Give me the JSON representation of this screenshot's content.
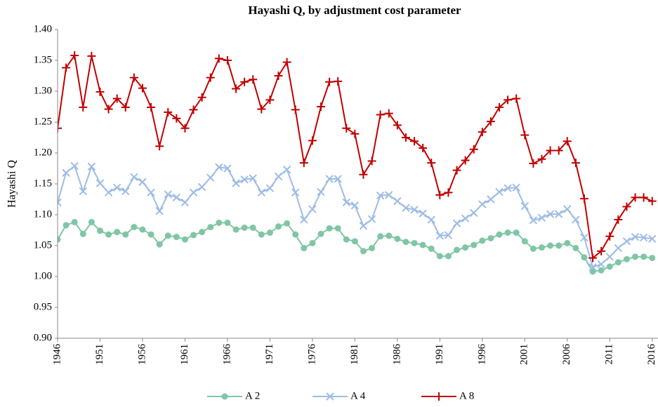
{
  "chart_data": {
    "type": "line",
    "title": "Hayashi Q, by adjustment cost parameter",
    "y_label": "Hayashi Q",
    "x": [
      1946,
      1947,
      1948,
      1949,
      1950,
      1951,
      1952,
      1953,
      1954,
      1955,
      1956,
      1957,
      1958,
      1959,
      1960,
      1961,
      1962,
      1963,
      1964,
      1965,
      1966,
      1967,
      1968,
      1969,
      1970,
      1971,
      1972,
      1973,
      1974,
      1975,
      1976,
      1977,
      1978,
      1979,
      1980,
      1981,
      1982,
      1983,
      1984,
      1985,
      1986,
      1987,
      1988,
      1989,
      1990,
      1991,
      1992,
      1993,
      1994,
      1995,
      1996,
      1997,
      1998,
      1999,
      2000,
      2001,
      2002,
      2003,
      2004,
      2005,
      2006,
      2007,
      2008,
      2009,
      2010,
      2011,
      2012,
      2013,
      2014,
      2015,
      2016
    ],
    "xlim": [
      1946,
      2016.6
    ],
    "xticks": [
      1946,
      1951,
      1956,
      1961,
      1966,
      1971,
      1976,
      1981,
      1986,
      1991,
      1996,
      2001,
      2006,
      2011,
      2016
    ],
    "ylim": [
      0.9,
      1.4
    ],
    "yticks": [
      {
        "value": 0.9,
        "label": "0.90"
      },
      {
        "value": 0.95,
        "label": "0.95"
      },
      {
        "value": 1.0,
        "label": "1.00"
      },
      {
        "value": 1.05,
        "label": "1.05"
      },
      {
        "value": 1.1,
        "label": "1.10"
      },
      {
        "value": 1.15,
        "label": "1.15"
      },
      {
        "value": 1.2,
        "label": "1.20"
      },
      {
        "value": 1.25,
        "label": "1.25"
      },
      {
        "value": 1.3,
        "label": "1.30"
      },
      {
        "value": 1.35,
        "label": "1.35"
      },
      {
        "value": 1.4,
        "label": "1.40"
      }
    ],
    "legend": "bottom",
    "series": [
      {
        "name": "A 2",
        "color": "#7fc6a4",
        "marker": "circle",
        "values": [
          1.06,
          1.083,
          1.088,
          1.069,
          1.088,
          1.074,
          1.068,
          1.072,
          1.068,
          1.08,
          1.076,
          1.068,
          1.052,
          1.066,
          1.064,
          1.06,
          1.067,
          1.072,
          1.08,
          1.087,
          1.087,
          1.076,
          1.079,
          1.079,
          1.068,
          1.071,
          1.081,
          1.086,
          1.068,
          1.046,
          1.054,
          1.069,
          1.078,
          1.078,
          1.06,
          1.057,
          1.041,
          1.046,
          1.065,
          1.066,
          1.061,
          1.056,
          1.054,
          1.051,
          1.045,
          1.033,
          1.033,
          1.043,
          1.047,
          1.051,
          1.058,
          1.062,
          1.068,
          1.071,
          1.071,
          1.057,
          1.045,
          1.047,
          1.05,
          1.05,
          1.054,
          1.046,
          1.031,
          1.008,
          1.01,
          1.016,
          1.023,
          1.028,
          1.032,
          1.032,
          1.03
        ]
      },
      {
        "name": "A 4",
        "color": "#9dbce6",
        "marker": "x",
        "values": [
          1.12,
          1.168,
          1.179,
          1.138,
          1.178,
          1.151,
          1.136,
          1.144,
          1.138,
          1.161,
          1.153,
          1.136,
          1.106,
          1.133,
          1.128,
          1.12,
          1.136,
          1.145,
          1.16,
          1.177,
          1.175,
          1.151,
          1.157,
          1.159,
          1.136,
          1.143,
          1.162,
          1.173,
          1.136,
          1.092,
          1.109,
          1.137,
          1.158,
          1.158,
          1.12,
          1.115,
          1.082,
          1.093,
          1.131,
          1.132,
          1.122,
          1.111,
          1.108,
          1.102,
          1.092,
          1.066,
          1.067,
          1.086,
          1.094,
          1.103,
          1.117,
          1.125,
          1.137,
          1.143,
          1.144,
          1.114,
          1.091,
          1.095,
          1.101,
          1.101,
          1.109,
          1.092,
          1.063,
          1.015,
          1.02,
          1.032,
          1.046,
          1.057,
          1.064,
          1.063,
          1.061
        ]
      },
      {
        "name": "A 8",
        "color": "#c00000",
        "marker": "plus",
        "values": [
          1.24,
          1.338,
          1.358,
          1.274,
          1.357,
          1.299,
          1.271,
          1.288,
          1.274,
          1.322,
          1.305,
          1.274,
          1.211,
          1.266,
          1.256,
          1.24,
          1.27,
          1.29,
          1.322,
          1.353,
          1.35,
          1.304,
          1.315,
          1.319,
          1.271,
          1.286,
          1.325,
          1.347,
          1.27,
          1.184,
          1.22,
          1.275,
          1.315,
          1.316,
          1.24,
          1.231,
          1.165,
          1.187,
          1.262,
          1.264,
          1.245,
          1.225,
          1.219,
          1.208,
          1.184,
          1.132,
          1.136,
          1.172,
          1.188,
          1.206,
          1.234,
          1.251,
          1.274,
          1.286,
          1.288,
          1.229,
          1.183,
          1.19,
          1.204,
          1.204,
          1.219,
          1.184,
          1.126,
          1.03,
          1.041,
          1.065,
          1.092,
          1.113,
          1.128,
          1.128,
          1.122
        ]
      }
    ]
  }
}
